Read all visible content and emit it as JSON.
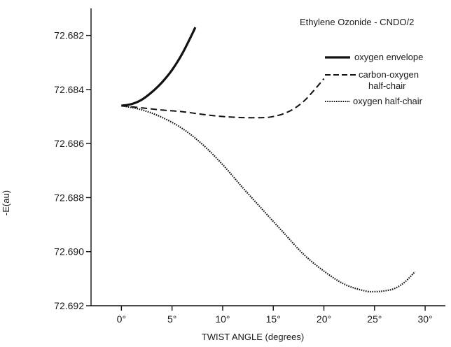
{
  "chart_data": {
    "type": "line",
    "title": "Ethylene Ozonide - CNDO/2",
    "xlabel": "TWIST ANGLE (degrees)",
    "ylabel": "-E(au)",
    "xlim": [
      -3,
      32
    ],
    "ylim": [
      72.681,
      72.692
    ],
    "y_inverted": true,
    "xticks": [
      0,
      5,
      10,
      15,
      20,
      25,
      30
    ],
    "xtick_labels": [
      "0°",
      "5°",
      "10°",
      "15°",
      "20°",
      "25°",
      "30°"
    ],
    "yticks": [
      72.682,
      72.684,
      72.686,
      72.688,
      72.69,
      72.692
    ],
    "ytick_labels": [
      "72.682",
      "72.684",
      "72.686",
      "72.688",
      "72.690",
      "72.692"
    ],
    "grid": false,
    "legend_position": "top-right",
    "series": [
      {
        "name": "oxygen envelope",
        "style": "solid",
        "x": [
          0,
          1,
          2,
          3,
          4,
          5,
          6,
          7,
          7.3
        ],
        "y": [
          72.6846,
          72.68454,
          72.68438,
          72.6841,
          72.68374,
          72.68328,
          72.68268,
          72.68194,
          72.6817
        ]
      },
      {
        "name": "carbon-oxygen half-chair",
        "style": "dashed",
        "x": [
          0,
          2,
          4,
          6,
          8,
          10,
          12,
          14,
          15,
          16,
          17,
          18,
          19,
          20
        ],
        "y": [
          72.6846,
          72.68468,
          72.68476,
          72.68482,
          72.68492,
          72.685,
          72.68504,
          72.68504,
          72.685,
          72.6849,
          72.68472,
          72.68444,
          72.68404,
          72.6836
        ]
      },
      {
        "name": "oxygen half-chair",
        "style": "dotted",
        "x": [
          0,
          2,
          4,
          6,
          8,
          10,
          12,
          14,
          16,
          18,
          20,
          22,
          24,
          25,
          26,
          27,
          28,
          29
        ],
        "y": [
          72.6846,
          72.68475,
          72.68503,
          72.68544,
          72.68603,
          72.68678,
          72.68764,
          72.68847,
          72.68929,
          72.6901,
          72.69072,
          72.6912,
          72.69145,
          72.69148,
          72.69145,
          72.69136,
          72.69112,
          72.69074
        ]
      }
    ]
  }
}
